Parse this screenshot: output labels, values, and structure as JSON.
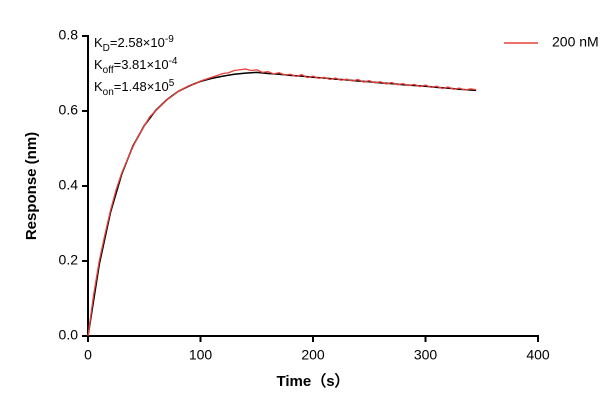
{
  "chart_data": {
    "type": "line",
    "x_label": "Time（s）",
    "y_label": "Response (nm)",
    "xlim": [
      0,
      400
    ],
    "xticks": [
      0,
      100,
      200,
      300,
      400
    ],
    "ylim": [
      0,
      0.8
    ],
    "yticks": [
      {
        "value": 0,
        "label": "0.0"
      },
      0.2,
      0.4,
      0.6,
      0.8
    ],
    "legend": "top-right",
    "annotations": [
      {
        "symbol": "K",
        "sub": "D",
        "text": "=2.58×10",
        "sup": "-9"
      },
      {
        "symbol": "K",
        "sub": "off",
        "text": "=3.81×10",
        "sup": "-4"
      },
      {
        "symbol": "K",
        "sub": "on",
        "text": "=1.48×10",
        "sup": "5"
      }
    ],
    "series": [
      {
        "color": "#000000",
        "x": [
          0,
          10,
          20,
          30,
          40,
          50,
          60,
          70,
          80,
          90,
          100,
          110,
          120,
          130,
          140,
          150,
          160,
          170,
          180,
          190,
          200,
          210,
          220,
          230,
          240,
          250,
          260,
          270,
          280,
          290,
          300,
          310,
          320,
          330,
          340,
          345
        ],
        "values": [
          0,
          0.191,
          0.33,
          0.432,
          0.507,
          0.561,
          0.601,
          0.63,
          0.652,
          0.667,
          0.679,
          0.687,
          0.693,
          0.698,
          0.701,
          0.703,
          0.7,
          0.698,
          0.695,
          0.693,
          0.69,
          0.688,
          0.685,
          0.683,
          0.68,
          0.678,
          0.675,
          0.673,
          0.67,
          0.668,
          0.666,
          0.663,
          0.661,
          0.658,
          0.656,
          0.655
        ]
      },
      {
        "name": "200 nM",
        "color": "#e8413c",
        "x": [
          0,
          5,
          10,
          15,
          20,
          25,
          30,
          35,
          40,
          45,
          50,
          55,
          60,
          65,
          70,
          75,
          80,
          85,
          90,
          95,
          100,
          105,
          110,
          115,
          120,
          125,
          130,
          135,
          140,
          145,
          150,
          155,
          160,
          165,
          170,
          175,
          180,
          185,
          190,
          195,
          200,
          205,
          210,
          215,
          220,
          225,
          230,
          235,
          240,
          245,
          250,
          255,
          260,
          265,
          270,
          275,
          280,
          285,
          290,
          295,
          300,
          305,
          310,
          315,
          320,
          325,
          330,
          335,
          340,
          345
        ],
        "values": [
          0,
          0.11,
          0.2,
          0.27,
          0.335,
          0.39,
          0.435,
          0.47,
          0.505,
          0.535,
          0.56,
          0.585,
          0.6,
          0.615,
          0.63,
          0.64,
          0.652,
          0.66,
          0.668,
          0.672,
          0.68,
          0.685,
          0.69,
          0.695,
          0.7,
          0.702,
          0.708,
          0.71,
          0.712,
          0.708,
          0.71,
          0.703,
          0.705,
          0.699,
          0.702,
          0.696,
          0.698,
          0.692,
          0.697,
          0.689,
          0.693,
          0.687,
          0.69,
          0.684,
          0.688,
          0.682,
          0.685,
          0.68,
          0.684,
          0.677,
          0.681,
          0.675,
          0.678,
          0.672,
          0.676,
          0.67,
          0.673,
          0.668,
          0.671,
          0.665,
          0.669,
          0.663,
          0.666,
          0.66,
          0.664,
          0.658,
          0.661,
          0.656,
          0.659,
          0.657
        ]
      }
    ]
  }
}
